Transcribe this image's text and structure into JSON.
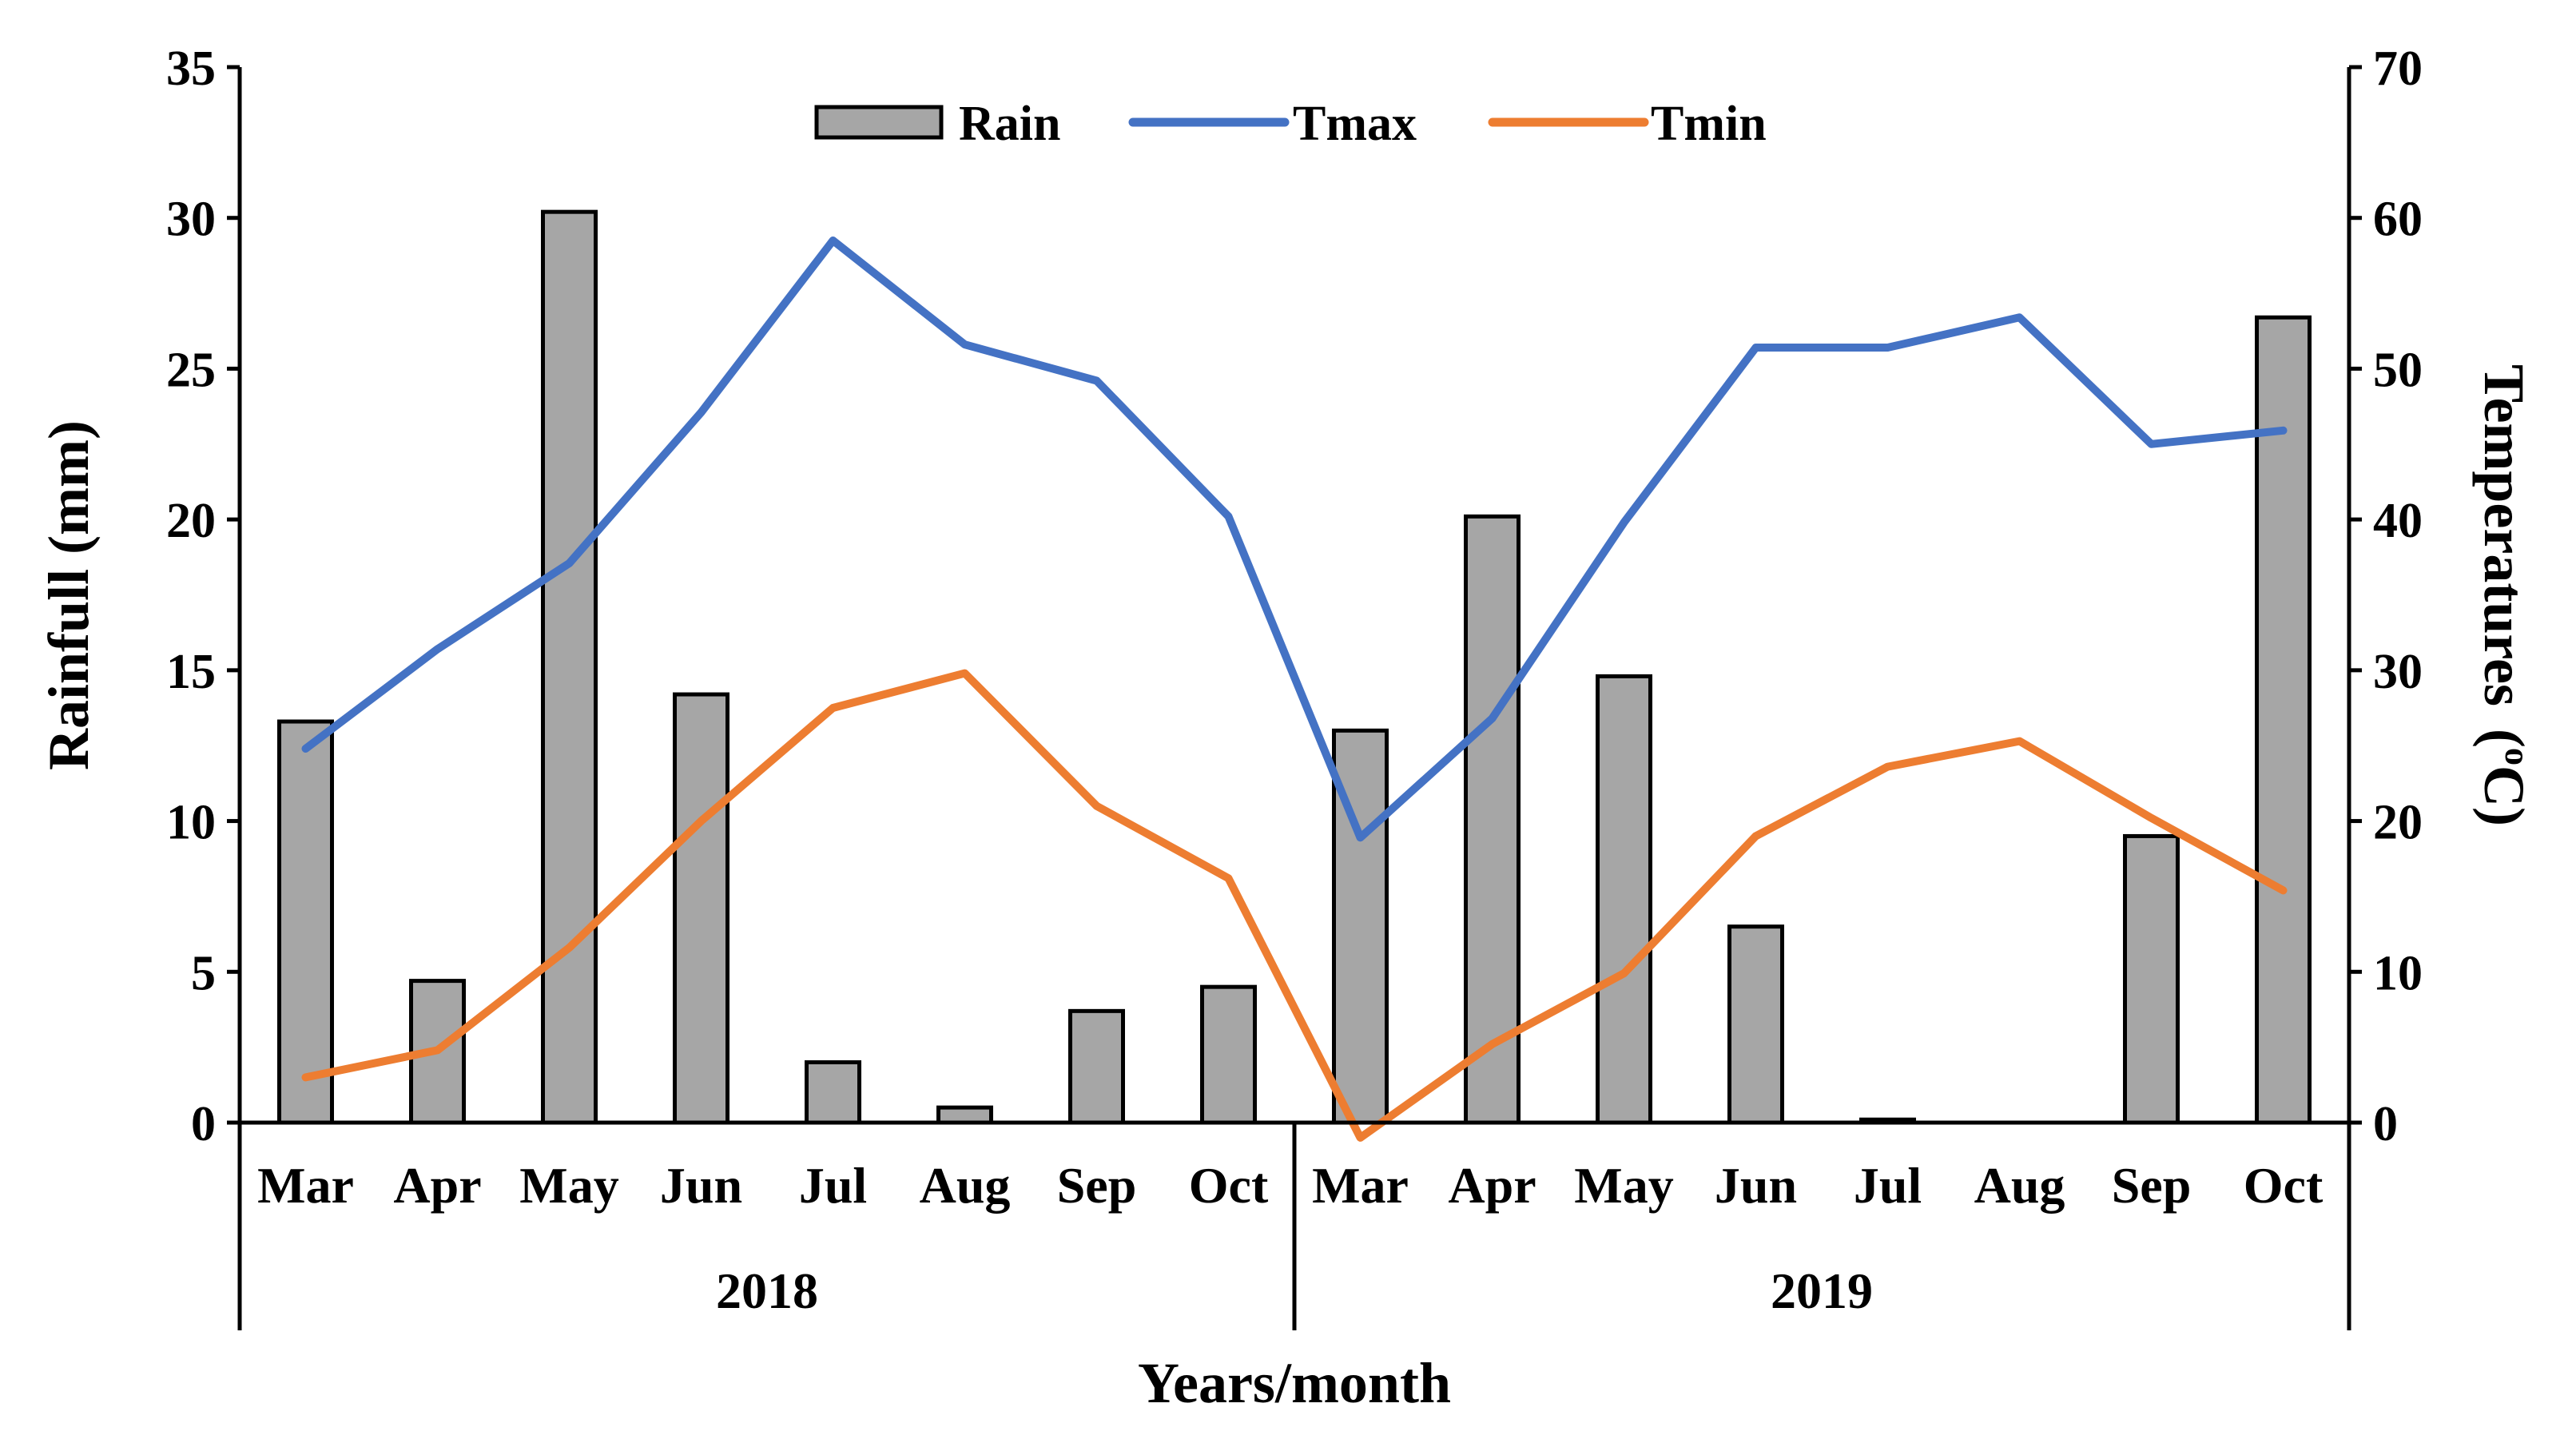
{
  "chart_data": {
    "type": "bar+line",
    "title": "",
    "xlabel": "Years/month",
    "ylabel_left": "Rainfull (mm)",
    "ylabel_right_main": "Temperatures",
    "ylabel_right_unit_open": "(",
    "ylabel_right_unit_sup": "o",
    "ylabel_right_unit_close": "C)",
    "ylim_left": [
      0,
      35
    ],
    "yticks_left": [
      0,
      5,
      10,
      15,
      20,
      25,
      30,
      35
    ],
    "ylim_right": [
      0,
      70
    ],
    "yticks_right": [
      0,
      10,
      20,
      30,
      40,
      50,
      60,
      70
    ],
    "grid": false,
    "legend_position": "top-center",
    "categories": [
      "Mar",
      "Apr",
      "May",
      "Jun",
      "Jul",
      "Aug",
      "Sep",
      "Oct",
      "Mar",
      "Apr",
      "May",
      "Jun",
      "Jul",
      "Aug",
      "Sep",
      "Oct"
    ],
    "groups": [
      {
        "label": "2018",
        "count": 8
      },
      {
        "label": "2019",
        "count": 8
      }
    ],
    "series": [
      {
        "name": "Rain",
        "kind": "bar",
        "axis": "left",
        "color": "#a6a6a6",
        "values": [
          13.3,
          4.7,
          30.2,
          14.2,
          2.0,
          0.5,
          3.7,
          4.5,
          13.0,
          20.1,
          14.8,
          6.5,
          0.1,
          0.0,
          9.5,
          26.7
        ]
      },
      {
        "name": "Tmax",
        "kind": "line",
        "axis": "right",
        "color": "#4472c4",
        "values": [
          24.8,
          31.4,
          37.1,
          47.1,
          58.5,
          51.6,
          49.2,
          40.2,
          18.9,
          26.8,
          39.8,
          51.4,
          51.4,
          53.4,
          45.0,
          45.9
        ]
      },
      {
        "name": "Tmin",
        "kind": "line",
        "axis": "right",
        "color": "#ed7d31",
        "values": [
          3.0,
          4.8,
          11.6,
          20.0,
          27.5,
          29.8,
          21.0,
          16.2,
          -1.0,
          5.2,
          9.9,
          19.0,
          23.6,
          25.3,
          20.2,
          15.4
        ]
      }
    ]
  }
}
